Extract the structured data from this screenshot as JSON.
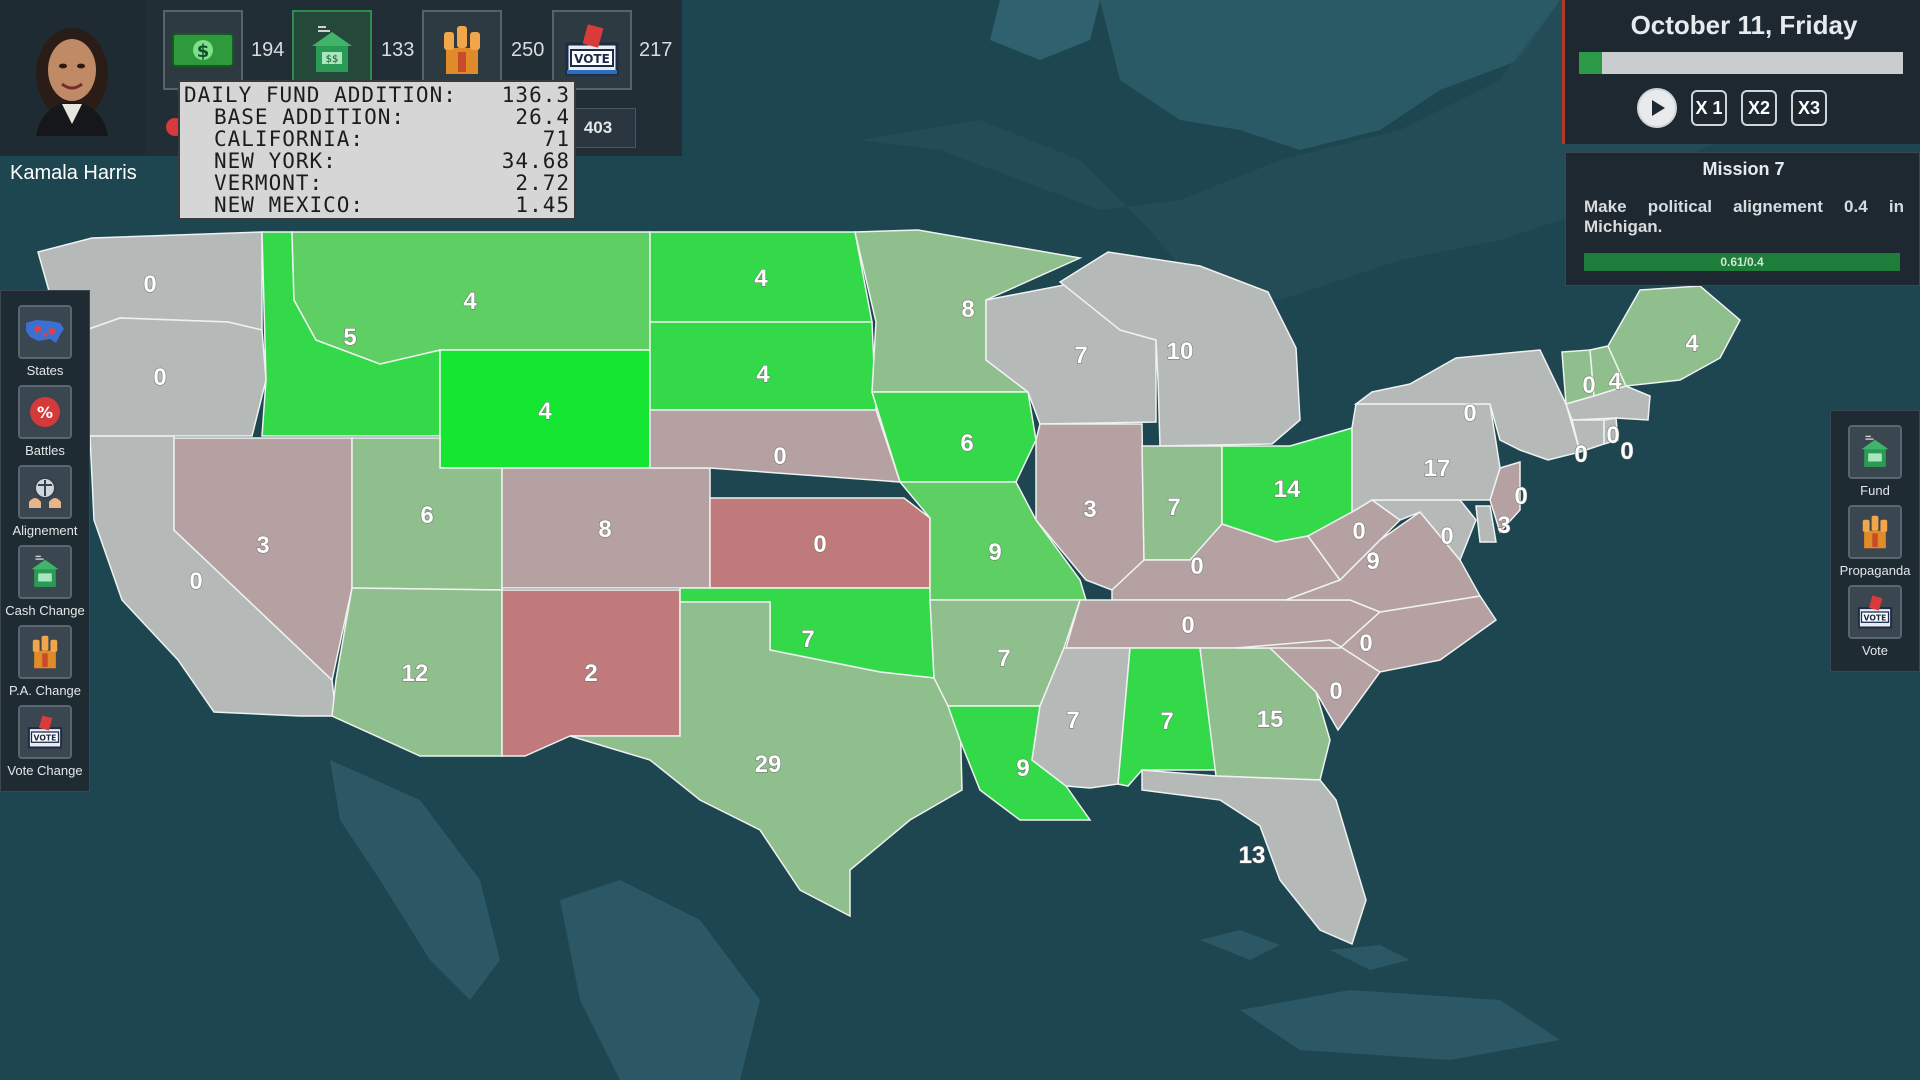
{
  "player": {
    "name": "Kamala Harris"
  },
  "resources": [
    {
      "icon": "money-icon",
      "value": "194"
    },
    {
      "icon": "fund-building-icon",
      "value": "133"
    },
    {
      "icon": "propaganda-fists-icon",
      "value": "250"
    },
    {
      "icon": "vote-box-icon",
      "value": "217"
    }
  ],
  "second_row_value": "403",
  "tooltip": {
    "title": {
      "label": "DAILY FUND ADDITION:",
      "value": "136.3"
    },
    "rows": [
      {
        "label": "BASE ADDITION:",
        "value": "26.4"
      },
      {
        "label": "CALIFORNIA:",
        "value": "71"
      },
      {
        "label": "NEW YORK:",
        "value": "34.68"
      },
      {
        "label": "VERMONT:",
        "value": "2.72"
      },
      {
        "label": "NEW MEXICO:",
        "value": "1.45"
      }
    ]
  },
  "date": {
    "text": "October 11, Friday",
    "day_progress": 0.07
  },
  "speed_controls": {
    "play_icon": "play-icon",
    "x1": "X 1",
    "x2": "X2",
    "x3": "X3"
  },
  "mission": {
    "title": "Mission 7",
    "description": "Make political alignement 0.4 in Michigan.",
    "progress_text": "0.61/0.4",
    "progress": 1.0
  },
  "left_sidebar": [
    {
      "label": "States",
      "icon": "usa-map-icon"
    },
    {
      "label": "Battles",
      "icon": "percent-icon"
    },
    {
      "label": "Alignement",
      "icon": "scales-icon"
    },
    {
      "label": "Cash Change",
      "icon": "fund-building-icon"
    },
    {
      "label": "P.A. Change",
      "icon": "propaganda-fists-icon"
    },
    {
      "label": "Vote Change",
      "icon": "vote-box-icon"
    }
  ],
  "right_sidebar": [
    {
      "label": "Fund",
      "icon": "fund-building-icon"
    },
    {
      "label": "Propaganda",
      "icon": "propaganda-fists-icon"
    },
    {
      "label": "Vote",
      "icon": "vote-box-icon"
    }
  ],
  "colors": {
    "strong_green": "#14e632",
    "green": "#34d94a",
    "light_green": "#5ecf62",
    "pale_green": "#8fbf8c",
    "grey": "#b5b9b8",
    "pale_red": "#b6a1a2",
    "red": "#c07a7b"
  },
  "states": [
    {
      "name": "Washington",
      "value": "0",
      "tone": "grey"
    },
    {
      "name": "Oregon",
      "value": "0",
      "tone": "grey"
    },
    {
      "name": "California",
      "value": "0",
      "tone": "grey"
    },
    {
      "name": "Idaho",
      "value": "5",
      "tone": "green"
    },
    {
      "name": "Montana",
      "value": "4",
      "tone": "light_green"
    },
    {
      "name": "Wyoming",
      "value": "4",
      "tone": "strong_green"
    },
    {
      "name": "Nevada",
      "value": "3",
      "tone": "pale_red"
    },
    {
      "name": "Utah",
      "value": "6",
      "tone": "pale_green"
    },
    {
      "name": "Colorado",
      "value": "8",
      "tone": "pale_red"
    },
    {
      "name": "Arizona",
      "value": "12",
      "tone": "pale_green"
    },
    {
      "name": "New Mexico",
      "value": "2",
      "tone": "red"
    },
    {
      "name": "North Dakota",
      "value": "4",
      "tone": "green"
    },
    {
      "name": "South Dakota",
      "value": "4",
      "tone": "green"
    },
    {
      "name": "Nebraska",
      "value": "0",
      "tone": "pale_red"
    },
    {
      "name": "Kansas",
      "value": "0",
      "tone": "red"
    },
    {
      "name": "Oklahoma",
      "value": "7",
      "tone": "green"
    },
    {
      "name": "Texas",
      "value": "29",
      "tone": "pale_green"
    },
    {
      "name": "Minnesota",
      "value": "8",
      "tone": "pale_green"
    },
    {
      "name": "Iowa",
      "value": "6",
      "tone": "green"
    },
    {
      "name": "Missouri",
      "value": "9",
      "tone": "light_green"
    },
    {
      "name": "Arkansas",
      "value": "7",
      "tone": "pale_green"
    },
    {
      "name": "Louisiana",
      "value": "9",
      "tone": "green"
    },
    {
      "name": "Wisconsin",
      "value": "7",
      "tone": "grey"
    },
    {
      "name": "Michigan",
      "value": "10",
      "tone": "grey"
    },
    {
      "name": "Illinois",
      "value": "3",
      "tone": "pale_red"
    },
    {
      "name": "Indiana",
      "value": "7",
      "tone": "pale_green"
    },
    {
      "name": "Ohio",
      "value": "14",
      "tone": "green"
    },
    {
      "name": "Kentucky",
      "value": "0",
      "tone": "pale_red"
    },
    {
      "name": "Tennessee",
      "value": "0",
      "tone": "pale_red"
    },
    {
      "name": "Mississippi",
      "value": "7",
      "tone": "grey"
    },
    {
      "name": "Alabama",
      "value": "7",
      "tone": "green"
    },
    {
      "name": "Georgia",
      "value": "15",
      "tone": "pale_green"
    },
    {
      "name": "Florida",
      "value": "13",
      "tone": "grey"
    },
    {
      "name": "South Carolina",
      "value": "0",
      "tone": "pale_red"
    },
    {
      "name": "North Carolina",
      "value": "0",
      "tone": "pale_red"
    },
    {
      "name": "Virginia",
      "value": "9",
      "tone": "pale_red"
    },
    {
      "name": "West Virginia",
      "value": "0",
      "tone": "pale_red"
    },
    {
      "name": "Maryland",
      "value": "0",
      "tone": "grey"
    },
    {
      "name": "Delaware",
      "value": "3",
      "tone": "grey"
    },
    {
      "name": "New Jersey",
      "value": "0",
      "tone": "pale_red"
    },
    {
      "name": "Pennsylvania",
      "value": "17",
      "tone": "grey"
    },
    {
      "name": "New York",
      "value": "0",
      "tone": "grey"
    },
    {
      "name": "Vermont",
      "value": "0",
      "tone": "pale_green"
    },
    {
      "name": "New Hampshire",
      "value": "4",
      "tone": "pale_green"
    },
    {
      "name": "Maine",
      "value": "4",
      "tone": "pale_green"
    },
    {
      "name": "Massachusetts",
      "value": "0",
      "tone": "grey"
    },
    {
      "name": "Connecticut",
      "value": "0",
      "tone": "grey"
    },
    {
      "name": "Rhode Island",
      "value": "0",
      "tone": "grey"
    }
  ]
}
